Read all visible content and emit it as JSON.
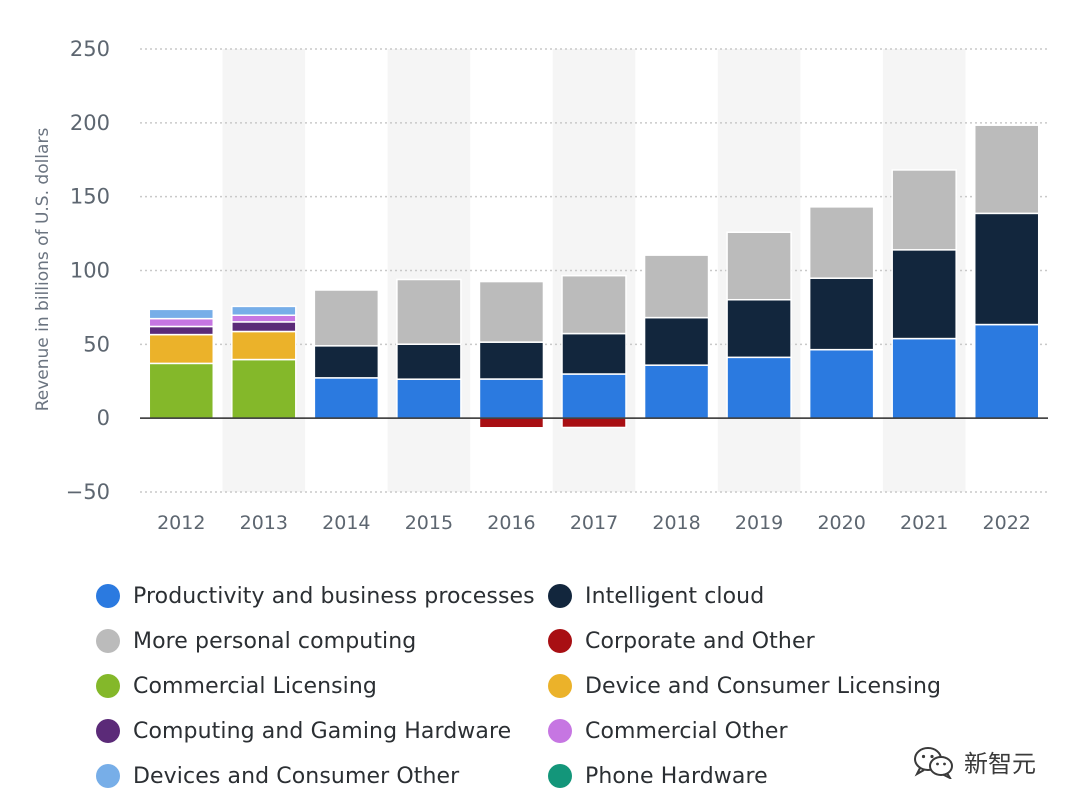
{
  "chart_data": {
    "type": "bar",
    "stacked": true,
    "title": "",
    "xlabel": "",
    "ylabel": "Revenue in billions of U.S. dollars",
    "ylim": [
      -50,
      250
    ],
    "yticks": [
      250,
      200,
      150,
      100,
      50,
      0,
      -50
    ],
    "grid": true,
    "legend_position": "bottom",
    "categories": [
      "2012",
      "2013",
      "2014",
      "2015",
      "2016",
      "2017",
      "2018",
      "2019",
      "2020",
      "2021",
      "2022"
    ],
    "series": [
      {
        "name": "Productivity and business processes",
        "color": "#2b7ae0",
        "values": [
          0,
          0,
          27.3,
          26.4,
          26.5,
          29.9,
          35.9,
          41.2,
          46.4,
          53.9,
          63.4
        ]
      },
      {
        "name": "Intelligent cloud",
        "color": "#12263d",
        "values": [
          0,
          0,
          21.7,
          23.7,
          25.0,
          27.4,
          32.2,
          39.0,
          48.4,
          60.1,
          75.3
        ]
      },
      {
        "name": "More personal computing",
        "color": "#bbbbbb",
        "values": [
          0,
          0,
          37.8,
          43.8,
          41.0,
          39.2,
          42.3,
          45.7,
          48.3,
          54.1,
          59.7
        ]
      },
      {
        "name": "Corporate and Other",
        "color": "#a80f13",
        "values": [
          0,
          0,
          0,
          0,
          -6.5,
          -6.3,
          0,
          0,
          0,
          0,
          0
        ]
      },
      {
        "name": "Commercial Licensing",
        "color": "#84b82a",
        "values": [
          37.1,
          39.7,
          0,
          0,
          0,
          0,
          0,
          0,
          0,
          0,
          0
        ]
      },
      {
        "name": "Device and Consumer Licensing",
        "color": "#ebb22a",
        "values": [
          19.5,
          19.0,
          0,
          0,
          0,
          0,
          0,
          0,
          0,
          0,
          0
        ]
      },
      {
        "name": "Computing and Gaming Hardware",
        "color": "#5b2a78",
        "values": [
          5.5,
          6.5,
          0,
          0,
          0,
          0,
          0,
          0,
          0,
          0,
          0
        ]
      },
      {
        "name": "Commercial Other",
        "color": "#c676e2",
        "values": [
          5.3,
          4.5,
          0,
          0,
          0,
          0,
          0,
          0,
          0,
          0,
          0
        ]
      },
      {
        "name": "Devices and Consumer Other",
        "color": "#77aee8",
        "values": [
          6.3,
          6.0,
          0,
          0,
          0,
          0,
          0,
          0,
          0,
          0,
          0
        ]
      },
      {
        "name": "Phone Hardware",
        "color": "#13967a",
        "values": [
          0,
          0,
          0,
          0,
          0,
          0,
          0,
          0,
          0,
          0,
          0
        ]
      }
    ]
  },
  "watermark": {
    "text": "新智元",
    "icon": "wechat-icon"
  }
}
